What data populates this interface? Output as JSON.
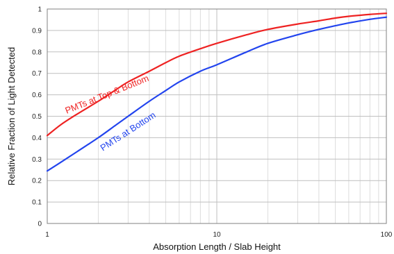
{
  "chart_data": {
    "type": "line",
    "title": "",
    "xlabel": "Absorption Length / Slab Height",
    "ylabel": "Relative Fraction of Light Detected",
    "xscale": "log",
    "xlim": [
      1,
      100
    ],
    "ylim": [
      0,
      1
    ],
    "grid": true,
    "x_ticks": [
      1,
      10,
      100
    ],
    "x_tick_labels": [
      "1",
      "10",
      "100"
    ],
    "y_ticks": [
      0,
      0.1,
      0.2,
      0.3,
      0.4,
      0.5,
      0.6,
      0.7,
      0.8,
      0.9,
      1
    ],
    "y_tick_labels": [
      "0",
      "0.1",
      "0.2",
      "0.3",
      "0.4",
      "0.5",
      "0.6",
      "0.7",
      "0.8",
      "0.9",
      "1"
    ],
    "series": [
      {
        "name": "PMTs at Top & Bottom",
        "color": "#ee2222",
        "x": [
          1,
          1.2,
          1.5,
          2,
          2.5,
          3,
          4,
          5,
          6,
          8,
          10,
          15,
          20,
          30,
          40,
          50,
          60,
          80,
          100
        ],
        "y": [
          0.41,
          0.46,
          0.51,
          0.57,
          0.62,
          0.66,
          0.71,
          0.75,
          0.78,
          0.815,
          0.84,
          0.88,
          0.905,
          0.93,
          0.945,
          0.958,
          0.966,
          0.975,
          0.98
        ]
      },
      {
        "name": "PMTs at Bottom",
        "color": "#2244ee",
        "x": [
          1,
          1.2,
          1.5,
          2,
          2.5,
          3,
          4,
          5,
          6,
          8,
          10,
          15,
          20,
          30,
          40,
          50,
          60,
          80,
          100
        ],
        "y": [
          0.245,
          0.285,
          0.335,
          0.4,
          0.455,
          0.5,
          0.57,
          0.62,
          0.66,
          0.71,
          0.74,
          0.8,
          0.84,
          0.88,
          0.905,
          0.922,
          0.935,
          0.952,
          0.962
        ]
      }
    ]
  }
}
